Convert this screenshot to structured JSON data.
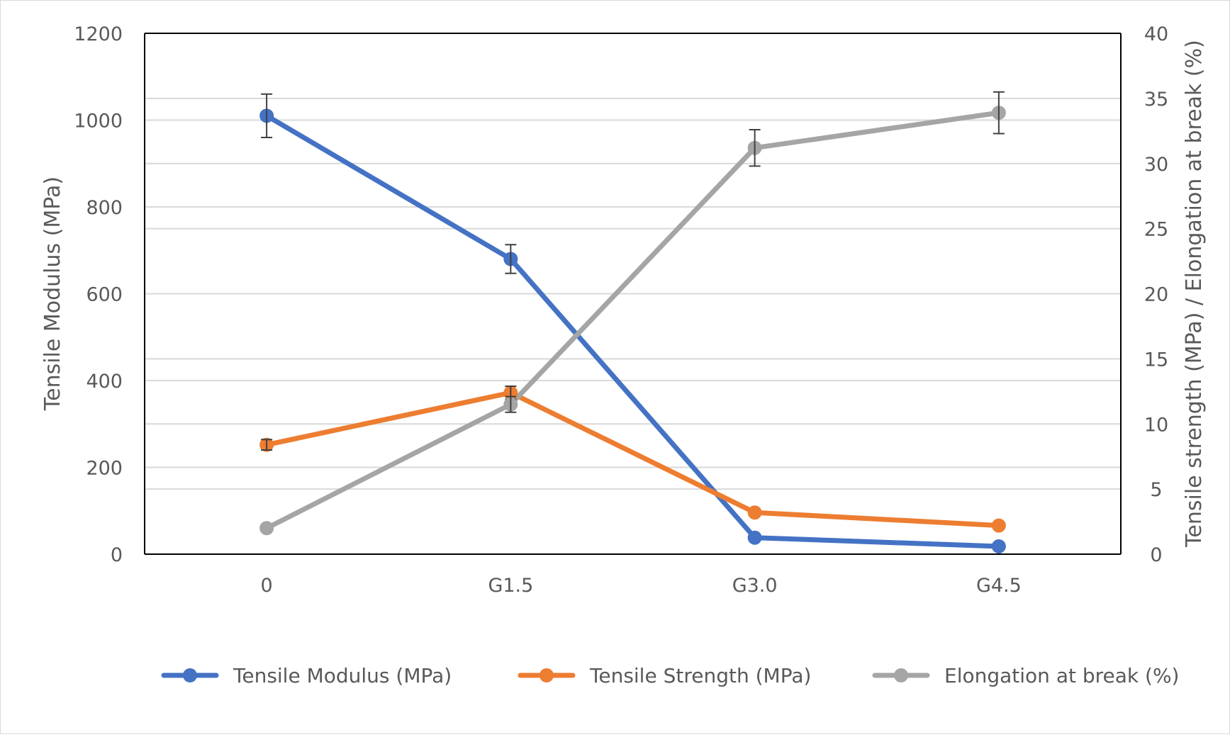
{
  "chart_data": {
    "type": "line",
    "title": "",
    "categories": [
      "0",
      "G1.5",
      "G3.0",
      "G4.5"
    ],
    "xlabel": "",
    "ylabel": "Tensile Modulus (MPa)",
    "y2label": "Tensile strength (MPa) / Elongation at break (%)",
    "ylim": [
      0,
      1200
    ],
    "y2lim": [
      0,
      40
    ],
    "yticks": [
      "0",
      "200",
      "400",
      "600",
      "800",
      "1000",
      "1200"
    ],
    "y2ticks": [
      "0",
      "5",
      "10",
      "15",
      "20",
      "25",
      "30",
      "35",
      "40"
    ],
    "grid": true,
    "legend_position": "bottom",
    "series": [
      {
        "name": "Tensile Modulus (MPa)",
        "axis": "left",
        "color": "#4472c4",
        "values": [
          1010,
          680,
          38,
          18
        ],
        "errors": [
          50,
          33,
          0,
          0
        ]
      },
      {
        "name": "Tensile Strength (MPa)",
        "axis": "right",
        "color": "#ed7d31",
        "values": [
          8.4,
          12.4,
          3.2,
          2.2
        ],
        "errors": [
          0.4,
          0.5,
          0,
          0
        ]
      },
      {
        "name": "Elongation at break (%)",
        "axis": "right",
        "color": "#a5a5a5",
        "values": [
          2.0,
          11.5,
          31.2,
          33.9
        ],
        "errors": [
          0,
          0.6,
          1.4,
          1.6
        ]
      }
    ]
  }
}
